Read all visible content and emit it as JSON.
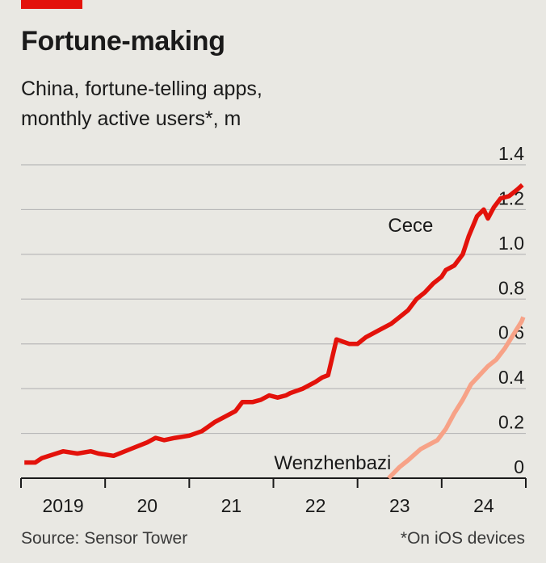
{
  "header": {
    "title": "Fortune-making",
    "subtitle_line1": "China, fortune-telling apps,",
    "subtitle_line2": "monthly active users*, m"
  },
  "footer": {
    "source": "Source: Sensor Tower",
    "note": "*On iOS devices"
  },
  "colors": {
    "accent": "#e3120b",
    "cece": "#e3120b",
    "wenzhenbazi": "#f7a287",
    "grid": "#b9b9b9",
    "axis": "#1a1a1a"
  },
  "chart_data": {
    "type": "line",
    "title": "Fortune-making",
    "subtitle": "China, fortune-telling apps, monthly active users*, m",
    "ylim": [
      0,
      1.4
    ],
    "yticks": [
      "0",
      "0.2",
      "0.4",
      "0.6",
      "0.8",
      "1.0",
      "1.2",
      "1.4"
    ],
    "xlim": [
      2019.0,
      2025.0
    ],
    "xtick_labels": [
      {
        "x": 2019.5,
        "label": "2019"
      },
      {
        "x": 2020.5,
        "label": "20"
      },
      {
        "x": 2021.5,
        "label": "21"
      },
      {
        "x": 2022.5,
        "label": "22"
      },
      {
        "x": 2023.5,
        "label": "23"
      },
      {
        "x": 2024.5,
        "label": "24"
      }
    ],
    "grid": true,
    "series": [
      {
        "name": "Cece",
        "color": "#e3120b",
        "points": [
          [
            2019.04,
            0.07
          ],
          [
            2019.17,
            0.07
          ],
          [
            2019.25,
            0.09
          ],
          [
            2019.5,
            0.12
          ],
          [
            2019.67,
            0.11
          ],
          [
            2019.83,
            0.12
          ],
          [
            2019.92,
            0.11
          ],
          [
            2020.1,
            0.1
          ],
          [
            2020.3,
            0.13
          ],
          [
            2020.5,
            0.16
          ],
          [
            2020.6,
            0.18
          ],
          [
            2020.7,
            0.17
          ],
          [
            2020.83,
            0.18
          ],
          [
            2021.0,
            0.19
          ],
          [
            2021.15,
            0.21
          ],
          [
            2021.3,
            0.25
          ],
          [
            2021.45,
            0.28
          ],
          [
            2021.55,
            0.3
          ],
          [
            2021.63,
            0.34
          ],
          [
            2021.75,
            0.34
          ],
          [
            2021.85,
            0.35
          ],
          [
            2021.95,
            0.37
          ],
          [
            2022.05,
            0.36
          ],
          [
            2022.15,
            0.37
          ],
          [
            2022.2,
            0.38
          ],
          [
            2022.35,
            0.4
          ],
          [
            2022.5,
            0.43
          ],
          [
            2022.58,
            0.45
          ],
          [
            2022.65,
            0.46
          ],
          [
            2022.75,
            0.62
          ],
          [
            2022.9,
            0.6
          ],
          [
            2023.0,
            0.6
          ],
          [
            2023.1,
            0.63
          ],
          [
            2023.25,
            0.66
          ],
          [
            2023.4,
            0.69
          ],
          [
            2023.5,
            0.72
          ],
          [
            2023.6,
            0.75
          ],
          [
            2023.7,
            0.8
          ],
          [
            2023.8,
            0.83
          ],
          [
            2023.9,
            0.87
          ],
          [
            2024.0,
            0.9
          ],
          [
            2024.05,
            0.93
          ],
          [
            2024.15,
            0.95
          ],
          [
            2024.25,
            1.0
          ],
          [
            2024.32,
            1.08
          ],
          [
            2024.42,
            1.17
          ],
          [
            2024.5,
            1.2
          ],
          [
            2024.55,
            1.16
          ],
          [
            2024.62,
            1.21
          ],
          [
            2024.7,
            1.25
          ],
          [
            2024.8,
            1.26
          ],
          [
            2024.9,
            1.29
          ],
          [
            2024.96,
            1.31
          ]
        ],
        "end_label_x": 2023.9,
        "end_label_y": 1.1
      },
      {
        "name": "Wenzhenbazi",
        "color": "#f7a287",
        "points": [
          [
            2023.37,
            0.0
          ],
          [
            2023.5,
            0.05
          ],
          [
            2023.6,
            0.08
          ],
          [
            2023.75,
            0.13
          ],
          [
            2023.85,
            0.15
          ],
          [
            2023.95,
            0.17
          ],
          [
            2024.05,
            0.22
          ],
          [
            2024.15,
            0.29
          ],
          [
            2024.25,
            0.35
          ],
          [
            2024.35,
            0.42
          ],
          [
            2024.45,
            0.46
          ],
          [
            2024.55,
            0.5
          ],
          [
            2024.65,
            0.53
          ],
          [
            2024.75,
            0.58
          ],
          [
            2024.85,
            0.64
          ],
          [
            2024.95,
            0.7
          ],
          [
            2024.97,
            0.72
          ]
        ],
        "end_label_x": 2023.4,
        "end_label_y": 0.04
      }
    ]
  }
}
